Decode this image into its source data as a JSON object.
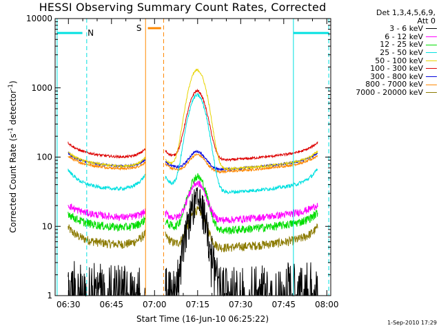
{
  "chart_data": {
    "type": "line",
    "title": "HESSI Observing Summary Count Rates, Corrected",
    "xlabel": "Start Time (16-Jun-10 06:25:22)",
    "ylabel": "Corrected Count Rate (s⁻¹ detector⁻¹)",
    "ylabel_main": "Corrected Count Rate (s",
    "ylabel_sup1": "-1",
    "ylabel_mid": " detector",
    "ylabel_sup2": "-1",
    "ylabel_end": ")",
    "x_range_minutes": [
      0,
      96
    ],
    "x_ticks": [
      {
        "label": "06:30",
        "minutes": 4.63
      },
      {
        "label": "06:45",
        "minutes": 19.63
      },
      {
        "label": "07:00",
        "minutes": 34.63
      },
      {
        "label": "07:15",
        "minutes": 49.63
      },
      {
        "label": "07:30",
        "minutes": 64.63
      },
      {
        "label": "07:45",
        "minutes": 79.63
      },
      {
        "label": "08:00",
        "minutes": 94.63
      }
    ],
    "y_scale": "log",
    "ylim": [
      1,
      10000
    ],
    "y_ticks": [
      "1",
      "10",
      "100",
      "1000",
      "10000"
    ],
    "legend_header": [
      "Det 1,3,4,5,6,9,",
      "Att 0"
    ],
    "series": [
      {
        "name": "3 - 6 keV",
        "color": "#000000",
        "base": 1.6,
        "peak": 24,
        "noise": 0.55,
        "lowClamp": true
      },
      {
        "name": "6 - 12 keV",
        "color": "#ff00ff",
        "base": 12,
        "peak": 42,
        "noise": 0.12,
        "edgeRise": 4
      },
      {
        "name": "12 - 25 keV",
        "color": "#00dd00",
        "base": 8.5,
        "peak": 52,
        "noise": 0.14,
        "edgeRise": 4
      },
      {
        "name": "25 - 50 keV",
        "color": "#00e0e0",
        "base": 30,
        "peak": 780,
        "noise": 0.06,
        "edgeRise": 25
      },
      {
        "name": "50 - 100 keV",
        "color": "#e8d400",
        "base": 65,
        "peak": 1800,
        "noise": 0.04,
        "edgeRise": 30
      },
      {
        "name": "100 - 300 keV",
        "color": "#dd0000",
        "base": 88,
        "peak": 900,
        "noise": 0.04,
        "edgeRise": 40
      },
      {
        "name": "300 - 800 keV",
        "color": "#0000dd",
        "base": 65,
        "peak": 120,
        "noise": 0.04,
        "edgeRise": 25
      },
      {
        "name": "800 - 7000 keV",
        "color": "#ff8800",
        "base": 60,
        "peak": 108,
        "noise": 0.04,
        "edgeRise": 22
      },
      {
        "name": "7000 - 20000 keV",
        "color": "#8b7a00",
        "base": 4.8,
        "peak": 17,
        "noise": 0.15,
        "edgeRise": 3
      }
    ],
    "flags": [
      {
        "label": "N",
        "color": "#00e0e0"
      },
      {
        "label": "S",
        "color": "#ff8800"
      }
    ],
    "markers": {
      "night_periods": [
        [
          0,
          11
        ],
        [
          83,
          96
        ]
      ],
      "saa_period": [
        31.5,
        37.8
      ]
    },
    "grid": false,
    "legend_position": "right, outside plot"
  },
  "footer": {
    "date_stamp": "1-Sep-2010 17:29"
  }
}
